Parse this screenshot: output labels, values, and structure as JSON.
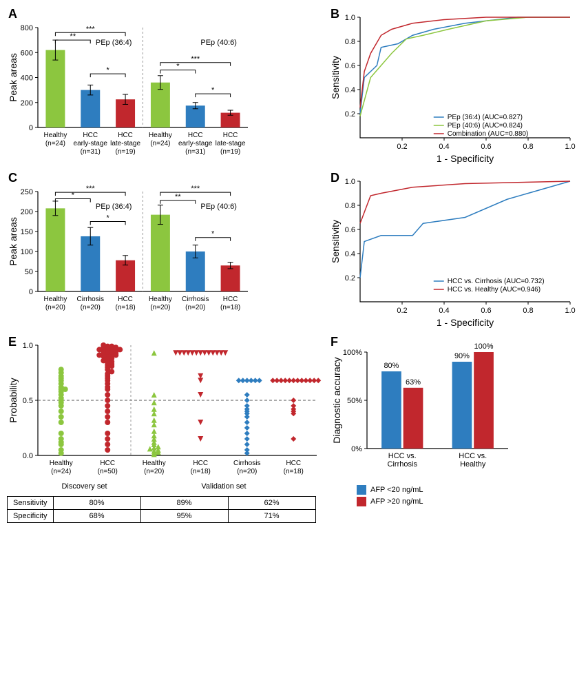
{
  "colors": {
    "green": "#8cc63f",
    "blue": "#2e7dbf",
    "red": "#c1272d",
    "axis": "#000",
    "grid": "#e0e0e0",
    "dash": "#666"
  },
  "A": {
    "type": "bar",
    "ylabel": "Peak areas",
    "ylim": [
      0,
      800
    ],
    "ystep": 200,
    "groups": [
      {
        "title": "PEp (36:4)",
        "cats": [
          "Healthy\n(n=24)",
          "HCC\nearly-stage\n(n=31)",
          "HCC\nlate-stage\n(n=19)"
        ],
        "vals": [
          620,
          300,
          225
        ],
        "err": [
          80,
          40,
          40
        ],
        "cols": [
          "green",
          "blue",
          "red"
        ],
        "sig": [
          [
            "***",
            0,
            2,
            760
          ],
          [
            "**",
            0,
            1,
            700
          ],
          [
            "*",
            1,
            2,
            430
          ]
        ]
      },
      {
        "title": "PEp (40:6)",
        "cats": [
          "Healthy\n(n=24)",
          "HCC\nearly-stage\n(n=31)",
          "HCC\nlate-stage\n(n=19)"
        ],
        "vals": [
          360,
          175,
          118
        ],
        "err": [
          55,
          25,
          20
        ],
        "cols": [
          "green",
          "blue",
          "red"
        ],
        "sig": [
          [
            "***",
            0,
            2,
            520
          ],
          [
            "*",
            0,
            1,
            460
          ],
          [
            "*",
            1,
            2,
            270
          ]
        ]
      }
    ]
  },
  "B": {
    "type": "roc",
    "xlabel": "1 - Specificity",
    "ylabel": "Sensitivity",
    "lim": [
      0,
      1
    ],
    "ticks": [
      0.2,
      0.4,
      0.6,
      0.8,
      1.0
    ],
    "series": [
      {
        "name": "PEp (36:4) (AUC=0.827)",
        "col": "blue",
        "pts": [
          [
            0,
            0.2
          ],
          [
            0.02,
            0.5
          ],
          [
            0.08,
            0.6
          ],
          [
            0.1,
            0.75
          ],
          [
            0.18,
            0.78
          ],
          [
            0.25,
            0.85
          ],
          [
            0.35,
            0.9
          ],
          [
            0.5,
            0.95
          ],
          [
            0.75,
            1
          ],
          [
            1,
            1
          ]
        ]
      },
      {
        "name": "PEp (40:6) (AUC=0.824)",
        "col": "green",
        "pts": [
          [
            0,
            0.18
          ],
          [
            0.05,
            0.5
          ],
          [
            0.1,
            0.6
          ],
          [
            0.15,
            0.7
          ],
          [
            0.22,
            0.82
          ],
          [
            0.3,
            0.85
          ],
          [
            0.42,
            0.9
          ],
          [
            0.6,
            0.97
          ],
          [
            0.8,
            1
          ],
          [
            1,
            1
          ]
        ]
      },
      {
        "name": "Combination (AUC=0.880)",
        "col": "red",
        "pts": [
          [
            0,
            0.25
          ],
          [
            0.02,
            0.55
          ],
          [
            0.05,
            0.7
          ],
          [
            0.1,
            0.85
          ],
          [
            0.15,
            0.9
          ],
          [
            0.25,
            0.95
          ],
          [
            0.4,
            0.98
          ],
          [
            0.6,
            1
          ],
          [
            1,
            1
          ]
        ]
      }
    ]
  },
  "C": {
    "type": "bar",
    "ylabel": "Peak areas",
    "ylim": [
      0,
      250
    ],
    "ystep": 50,
    "groups": [
      {
        "title": "PEp (36:4)",
        "cats": [
          "Healthy\n(n=20)",
          "Cirrhosis\n(n=20)",
          "HCC\n(n=18)"
        ],
        "vals": [
          208,
          138,
          78
        ],
        "err": [
          18,
          22,
          12
        ],
        "cols": [
          "green",
          "blue",
          "red"
        ],
        "sig": [
          [
            "***",
            0,
            2,
            248
          ],
          [
            "*",
            0,
            1,
            232
          ],
          [
            "*",
            1,
            2,
            175
          ]
        ]
      },
      {
        "title": "PEp (40:6)",
        "cats": [
          "Healthy\n(n=20)",
          "Cirrhosis\n(n=20)",
          "HCC\n(n=18)"
        ],
        "vals": [
          192,
          100,
          65
        ],
        "err": [
          24,
          16,
          8
        ],
        "cols": [
          "green",
          "blue",
          "red"
        ],
        "sig": [
          [
            "***",
            0,
            2,
            248
          ],
          [
            "**",
            0,
            1,
            228
          ],
          [
            "*",
            1,
            2,
            135
          ]
        ]
      }
    ]
  },
  "D": {
    "type": "roc",
    "xlabel": "1 - Specificity",
    "ylabel": "Sensitivity",
    "lim": [
      0,
      1
    ],
    "ticks": [
      0.2,
      0.4,
      0.6,
      0.8,
      1.0
    ],
    "series": [
      {
        "name": "HCC vs. Cirrhosis (AUC=0.732)",
        "col": "blue",
        "pts": [
          [
            0,
            0.2
          ],
          [
            0.02,
            0.5
          ],
          [
            0.1,
            0.55
          ],
          [
            0.25,
            0.55
          ],
          [
            0.3,
            0.65
          ],
          [
            0.5,
            0.7
          ],
          [
            0.7,
            0.85
          ],
          [
            1,
            1
          ]
        ]
      },
      {
        "name": "HCC vs. Healthy (AUC=0.946)",
        "col": "red",
        "pts": [
          [
            0,
            0.65
          ],
          [
            0.05,
            0.88
          ],
          [
            0.1,
            0.9
          ],
          [
            0.25,
            0.95
          ],
          [
            0.5,
            0.98
          ],
          [
            1,
            1
          ]
        ]
      }
    ]
  },
  "E": {
    "type": "scatter",
    "ylabel": "Probability",
    "ylim": [
      0,
      1
    ],
    "ystep": 0.5,
    "hline": 0.5,
    "sections": [
      {
        "label": "Discovery set",
        "groups": [
          {
            "x": 0,
            "cat": "Healthy\n(n=24)",
            "col": "green",
            "shape": "circle",
            "pts": [
              0.02,
              0.05,
              0.1,
              0.12,
              0.15,
              0.2,
              0.35,
              0.4,
              0.45,
              0.48,
              0.5,
              0.52,
              0.55,
              0.58,
              0.6,
              0.62,
              0.65,
              0.68,
              0.7,
              0.72,
              0.75,
              0.78,
              0.6,
              0.3
            ]
          },
          {
            "x": 1,
            "cat": "HCC\n(n=50)",
            "col": "red",
            "shape": "circle",
            "pts": [
              0.05,
              0.1,
              0.15,
              0.2,
              0.3,
              0.35,
              0.4,
              0.45,
              0.5,
              0.55,
              0.6,
              0.62,
              0.65,
              0.68,
              0.7,
              0.72,
              0.74,
              0.76,
              0.78,
              0.8,
              0.81,
              0.82,
              0.83,
              0.84,
              0.85,
              0.86,
              0.87,
              0.88,
              0.89,
              0.9,
              0.9,
              0.91,
              0.91,
              0.92,
              0.92,
              0.93,
              0.93,
              0.94,
              0.94,
              0.95,
              0.95,
              0.96,
              0.96,
              0.97,
              0.97,
              0.98,
              0.98,
              0.99,
              0.99,
              1.0
            ]
          }
        ]
      },
      {
        "label": "Validation set",
        "groups": [
          {
            "x": 2,
            "cat": "Healthy\n(n=20)",
            "col": "green",
            "shape": "triangle",
            "pts": [
              0.01,
              0.02,
              0.03,
              0.04,
              0.05,
              0.06,
              0.07,
              0.08,
              0.1,
              0.12,
              0.15,
              0.18,
              0.22,
              0.28,
              0.32,
              0.38,
              0.42,
              0.48,
              0.55,
              0.93
            ]
          },
          {
            "x": 3,
            "cat": "HCC\n(n=18)",
            "col": "red",
            "shape": "triangle-down",
            "pts": [
              0.15,
              0.3,
              0.55,
              0.68,
              0.72,
              0.93,
              0.93,
              0.93,
              0.93,
              0.93,
              0.93,
              0.93,
              0.93,
              0.93,
              0.93,
              0.93,
              0.93,
              0.93
            ]
          },
          {
            "x": 4,
            "cat": "Cirrhosis\n(n=20)",
            "col": "blue",
            "shape": "diamond",
            "pts": [
              0.02,
              0.05,
              0.1,
              0.15,
              0.2,
              0.25,
              0.3,
              0.35,
              0.38,
              0.4,
              0.42,
              0.45,
              0.5,
              0.55,
              0.68,
              0.68,
              0.68,
              0.68,
              0.68,
              0.68
            ]
          },
          {
            "x": 5,
            "cat": "HCC\n(n=18)",
            "col": "red",
            "shape": "diamond",
            "pts": [
              0.15,
              0.38,
              0.4,
              0.42,
              0.45,
              0.5,
              0.68,
              0.68,
              0.68,
              0.68,
              0.68,
              0.68,
              0.68,
              0.68,
              0.68,
              0.68,
              0.68,
              0.68
            ]
          }
        ]
      }
    ],
    "table": {
      "rows": [
        "Sensitivity",
        "Specificity"
      ],
      "cells": [
        [
          "80%",
          "89%",
          "62%"
        ],
        [
          "68%",
          "95%",
          "71%"
        ]
      ]
    }
  },
  "F": {
    "type": "bar",
    "ylabel": "Diagnostic accuracy",
    "ylim": [
      0,
      100
    ],
    "ystep": 50,
    "cats": [
      "HCC vs.\nCirrhosis",
      "HCC vs.\nHealthy"
    ],
    "series": [
      {
        "name": "AFP <20 ng/mL",
        "col": "blue",
        "vals": [
          80,
          90
        ]
      },
      {
        "name": "AFP >20 ng/mL",
        "col": "red",
        "vals": [
          63,
          100
        ]
      }
    ],
    "labels": [
      "80%",
      "63%",
      "90%",
      "100%"
    ]
  }
}
